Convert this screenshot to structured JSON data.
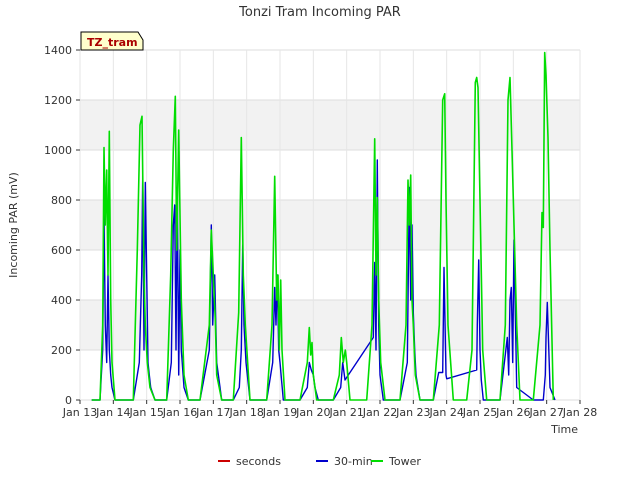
{
  "chart_data": {
    "type": "line",
    "title": "Tonzi Tram Incoming PAR",
    "xlabel": "Time",
    "ylabel": "Incoming PAR (mV)",
    "site_tag": "TZ_tram",
    "xlim": [
      13,
      28
    ],
    "ylim": [
      0,
      1400
    ],
    "x_ticks": [
      13,
      14,
      15,
      16,
      17,
      18,
      19,
      20,
      21,
      22,
      23,
      24,
      25,
      26,
      27,
      28
    ],
    "x_tick_labels": [
      "Jan 13",
      "Jan 14",
      "Jan 15",
      "Jan 16",
      "Jan 17",
      "Jan 18",
      "Jan 19",
      "Jan 20",
      "Jan 21",
      "Jan 22",
      "Jan 23",
      "Jan 24",
      "Jan 25",
      "Jan 26",
      "Jan 27",
      "Jan 28"
    ],
    "y_ticks": [
      0,
      200,
      400,
      600,
      800,
      1000,
      1200,
      1400
    ],
    "y_tick_labels": [
      "0",
      "200",
      "400",
      "600",
      "800",
      "1000",
      "1200",
      "1400"
    ],
    "series": [
      {
        "name": "seconds",
        "color": "#cc0000",
        "x": [],
        "y": []
      },
      {
        "name": "30-min",
        "color": "#0000cc",
        "x": [
          13.35,
          13.6,
          13.68,
          13.72,
          13.76,
          13.8,
          13.84,
          13.88,
          13.92,
          13.96,
          14.05,
          14.2,
          14.6,
          14.78,
          14.85,
          14.88,
          14.92,
          14.96,
          15.0,
          15.04,
          15.08,
          15.12,
          15.25,
          15.6,
          15.74,
          15.8,
          15.84,
          15.88,
          15.92,
          15.96,
          16.0,
          16.04,
          16.12,
          16.25,
          16.6,
          16.88,
          16.94,
          16.98,
          17.04,
          17.1,
          17.25,
          17.6,
          17.78,
          17.84,
          17.88,
          17.92,
          17.98,
          18.1,
          18.6,
          18.78,
          18.84,
          18.88,
          18.92,
          18.96,
          19.0,
          19.1,
          19.6,
          19.82,
          19.88,
          19.94,
          20.0,
          20.05,
          20.15,
          20.6,
          20.82,
          20.88,
          20.95,
          21.8,
          21.84,
          21.88,
          21.92,
          21.96,
          22.0,
          22.1,
          22.6,
          22.82,
          22.88,
          22.92,
          22.96,
          23.0,
          23.04,
          23.08,
          23.2,
          23.6,
          23.76,
          23.88,
          23.92,
          23.98,
          24.0,
          24.9,
          24.92,
          24.96,
          25.0,
          25.04,
          25.1,
          25.6,
          25.82,
          25.86,
          25.9,
          25.94,
          25.98,
          26.02,
          26.1,
          26.6,
          26.9,
          26.96,
          26.98,
          27.02,
          27.1,
          27.25
        ],
        "y": [
          0,
          0,
          200,
          750,
          300,
          150,
          500,
          200,
          100,
          50,
          0,
          0,
          0,
          150,
          500,
          900,
          200,
          870,
          500,
          150,
          100,
          50,
          0,
          0,
          150,
          700,
          780,
          200,
          850,
          100,
          600,
          200,
          50,
          0,
          0,
          200,
          700,
          300,
          500,
          150,
          0,
          0,
          50,
          200,
          620,
          300,
          150,
          0,
          0,
          150,
          450,
          300,
          500,
          200,
          150,
          0,
          0,
          50,
          150,
          120,
          100,
          50,
          0,
          0,
          50,
          150,
          80,
          250,
          550,
          200,
          960,
          300,
          100,
          0,
          0,
          150,
          850,
          400,
          700,
          350,
          200,
          100,
          0,
          0,
          110,
          110,
          530,
          100,
          85,
          120,
          300,
          560,
          200,
          80,
          0,
          0,
          250,
          100,
          400,
          450,
          150,
          640,
          50,
          0,
          0,
          100,
          250,
          390,
          50,
          0
        ]
      },
      {
        "name": "Tower",
        "color": "#00dd00",
        "x": [
          13.35,
          13.6,
          13.68,
          13.72,
          13.76,
          13.8,
          13.84,
          13.88,
          13.92,
          13.96,
          14.05,
          14.2,
          14.6,
          14.72,
          14.8,
          14.86,
          14.92,
          14.96,
          15.02,
          15.1,
          15.25,
          15.6,
          15.72,
          15.8,
          15.86,
          15.9,
          15.96,
          16.04,
          16.12,
          16.25,
          16.6,
          16.88,
          16.94,
          17.0,
          17.06,
          17.1,
          17.25,
          17.6,
          17.76,
          17.84,
          17.9,
          17.96,
          18.1,
          18.6,
          18.76,
          18.84,
          18.9,
          18.94,
          18.98,
          19.02,
          19.06,
          19.15,
          19.6,
          19.82,
          19.88,
          19.92,
          19.96,
          20.0,
          20.1,
          20.6,
          20.78,
          20.84,
          20.9,
          20.96,
          21.0,
          21.1,
          21.6,
          21.76,
          21.84,
          21.88,
          21.92,
          21.96,
          22.02,
          22.15,
          22.6,
          22.78,
          22.84,
          22.88,
          22.92,
          22.96,
          23.0,
          23.06,
          23.2,
          23.6,
          23.78,
          23.88,
          23.94,
          23.98,
          24.04,
          24.2,
          24.6,
          24.76,
          24.86,
          24.9,
          24.94,
          25.0,
          25.08,
          25.2,
          25.6,
          25.76,
          25.84,
          25.9,
          25.96,
          26.02,
          26.1,
          26.2,
          26.6,
          26.8,
          26.86,
          26.9,
          26.94,
          26.98,
          27.04,
          27.1,
          27.2
        ],
        "y": [
          0,
          0,
          300,
          1010,
          700,
          920,
          500,
          1075,
          400,
          150,
          0,
          0,
          0,
          600,
          1100,
          1135,
          500,
          300,
          150,
          50,
          0,
          0,
          500,
          1000,
          1215,
          600,
          1080,
          400,
          100,
          0,
          0,
          300,
          680,
          500,
          320,
          100,
          0,
          0,
          350,
          1050,
          500,
          300,
          0,
          0,
          300,
          895,
          400,
          500,
          200,
          480,
          200,
          0,
          0,
          150,
          290,
          180,
          230,
          100,
          0,
          0,
          100,
          250,
          150,
          200,
          150,
          0,
          0,
          300,
          1045,
          500,
          810,
          400,
          150,
          0,
          0,
          300,
          880,
          700,
          900,
          400,
          300,
          100,
          0,
          0,
          300,
          1200,
          1225,
          800,
          300,
          0,
          0,
          200,
          1270,
          1290,
          1250,
          800,
          200,
          0,
          0,
          300,
          1200,
          1290,
          1000,
          700,
          300,
          0,
          0,
          300,
          750,
          690,
          1390,
          1300,
          1050,
          600,
          0
        ]
      }
    ],
    "legend": [
      "seconds",
      "30-min",
      "Tower"
    ]
  }
}
